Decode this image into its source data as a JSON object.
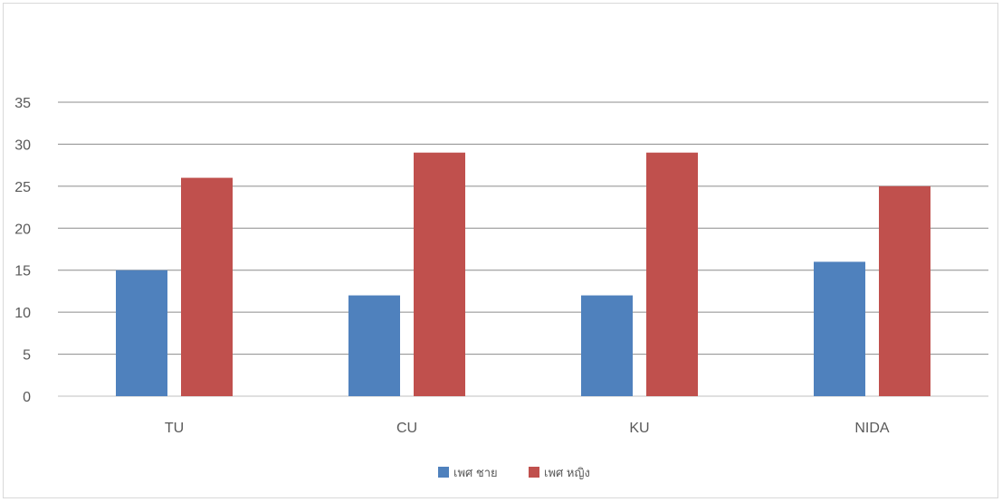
{
  "chart_data": {
    "type": "bar",
    "categories": [
      "TU",
      "CU",
      "KU",
      "NIDA"
    ],
    "series": [
      {
        "name": "เพศ ชาย",
        "color": "#4f81bd",
        "values": [
          15,
          12,
          12,
          16
        ]
      },
      {
        "name": "เพศ หญิง",
        "color": "#c0504d",
        "values": [
          26,
          29,
          29,
          25
        ]
      }
    ],
    "y_ticks": [
      "0",
      "5",
      "10",
      "15",
      "20",
      "25",
      "30",
      "35"
    ],
    "ylim": [
      0,
      35
    ],
    "grid": true,
    "legend_position": "bottom"
  }
}
